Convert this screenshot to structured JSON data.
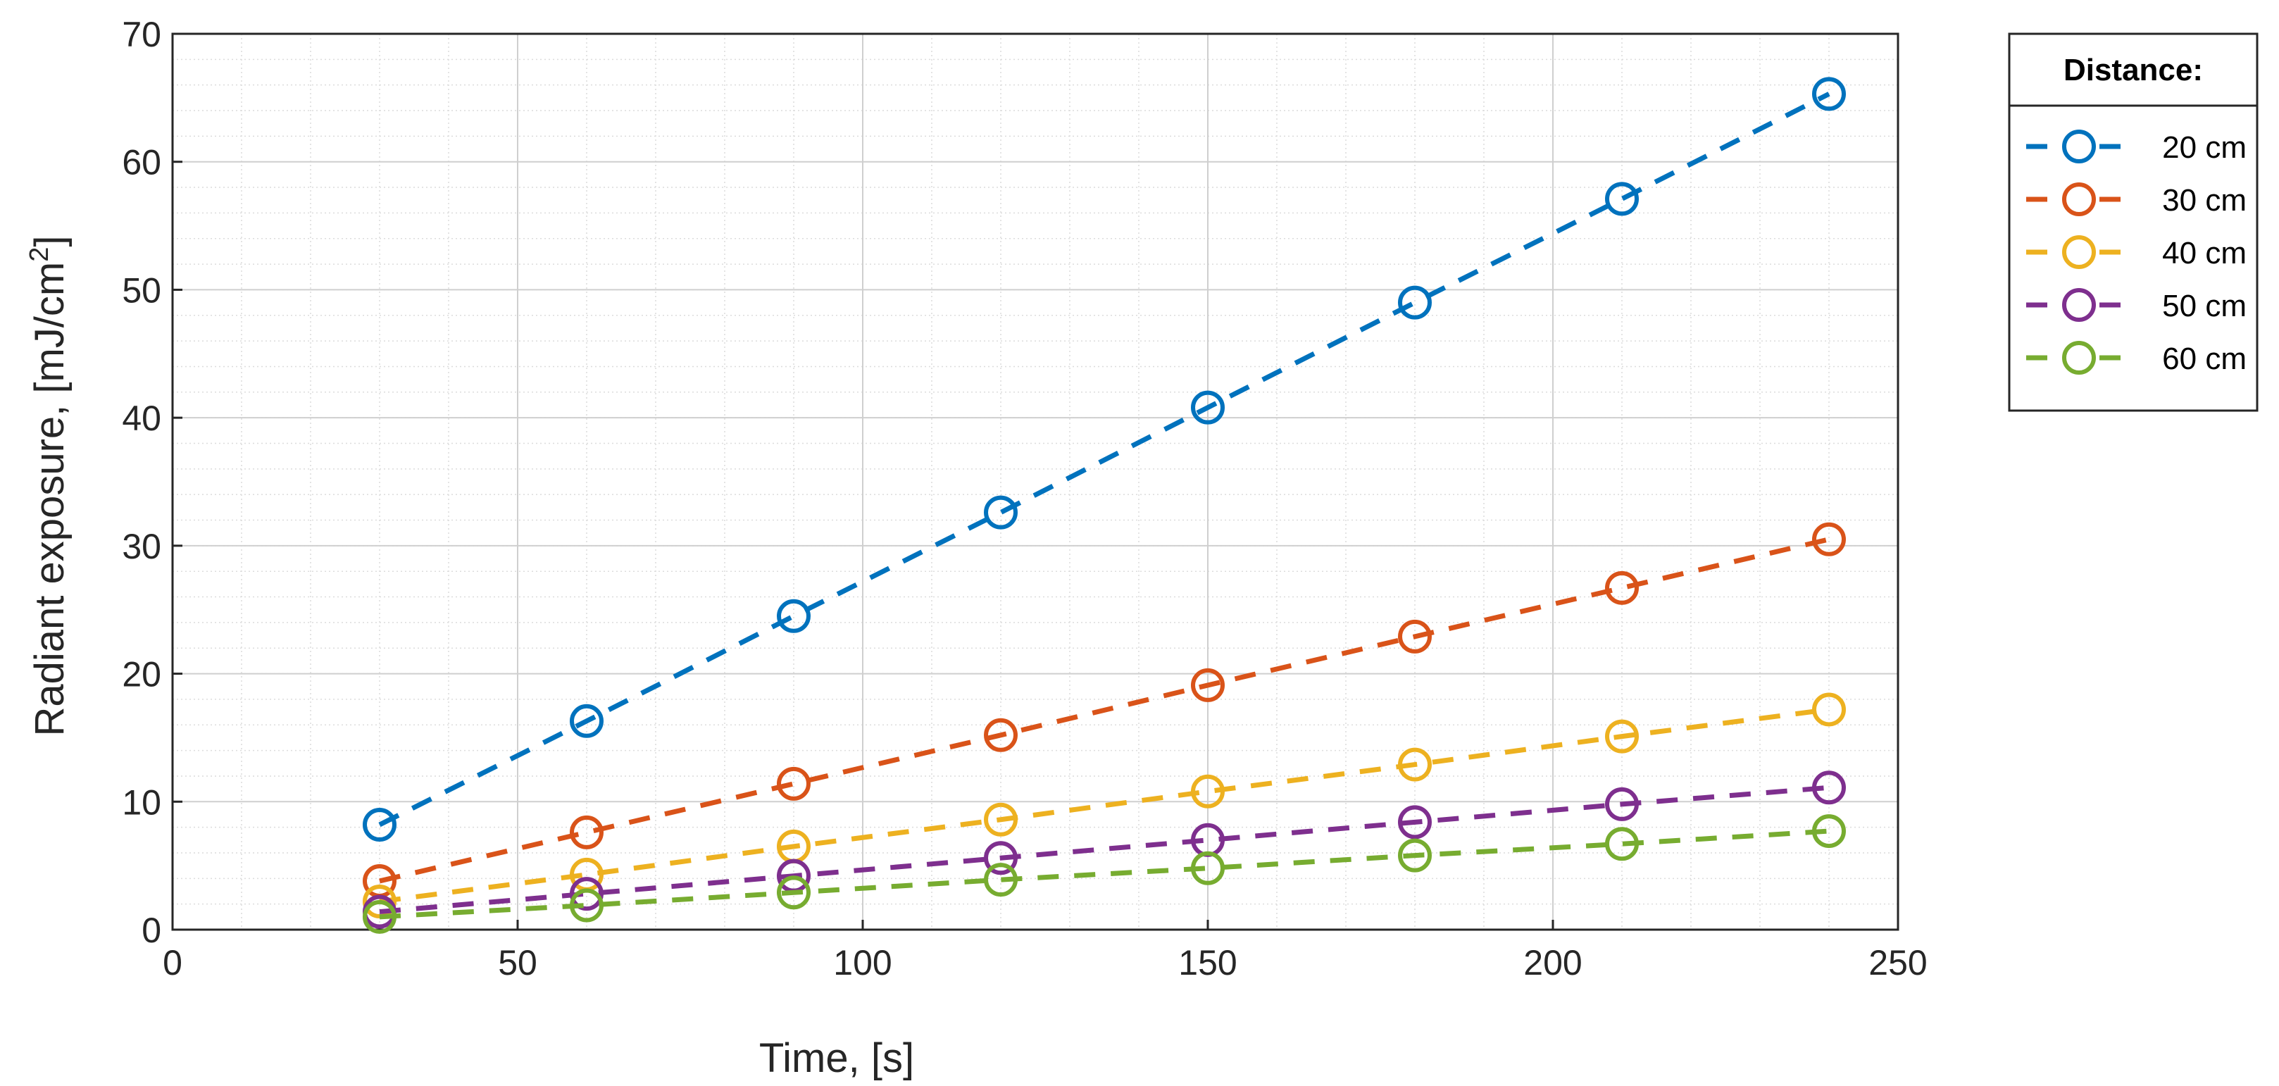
{
  "chart_data": {
    "type": "line",
    "title": "",
    "xlabel": "Time, [s]",
    "ylabel": "Radiant exposure, [mJ/cm",
    "ylabel_superscript": "2",
    "ylabel_suffix": "]",
    "xlim": [
      0,
      250
    ],
    "ylim": [
      0,
      70
    ],
    "xticks": [
      0,
      50,
      100,
      150,
      200,
      250
    ],
    "yticks": [
      0,
      10,
      20,
      30,
      40,
      50,
      60,
      70
    ],
    "grid": true,
    "minor_grid": true,
    "legend_title": "Distance:",
    "legend_position": "outside-top-right",
    "x": [
      30,
      60,
      90,
      120,
      150,
      180,
      210,
      240
    ],
    "series": [
      {
        "name": "20 cm",
        "color": "#0072BD",
        "values": [
          8.2,
          16.3,
          24.5,
          32.6,
          40.8,
          49.0,
          57.1,
          65.3
        ]
      },
      {
        "name": "30 cm",
        "color": "#D95319",
        "values": [
          3.8,
          7.6,
          11.4,
          15.2,
          19.1,
          22.9,
          26.7,
          30.5
        ]
      },
      {
        "name": "40 cm",
        "color": "#EDB120",
        "values": [
          2.2,
          4.3,
          6.5,
          8.6,
          10.8,
          12.9,
          15.1,
          17.2
        ]
      },
      {
        "name": "50 cm",
        "color": "#7E2F8E",
        "values": [
          1.4,
          2.8,
          4.2,
          5.6,
          7.0,
          8.4,
          9.8,
          11.1
        ]
      },
      {
        "name": "60 cm",
        "color": "#77AC30",
        "values": [
          1.0,
          1.9,
          2.9,
          3.9,
          4.8,
          5.8,
          6.7,
          7.7
        ]
      }
    ]
  }
}
